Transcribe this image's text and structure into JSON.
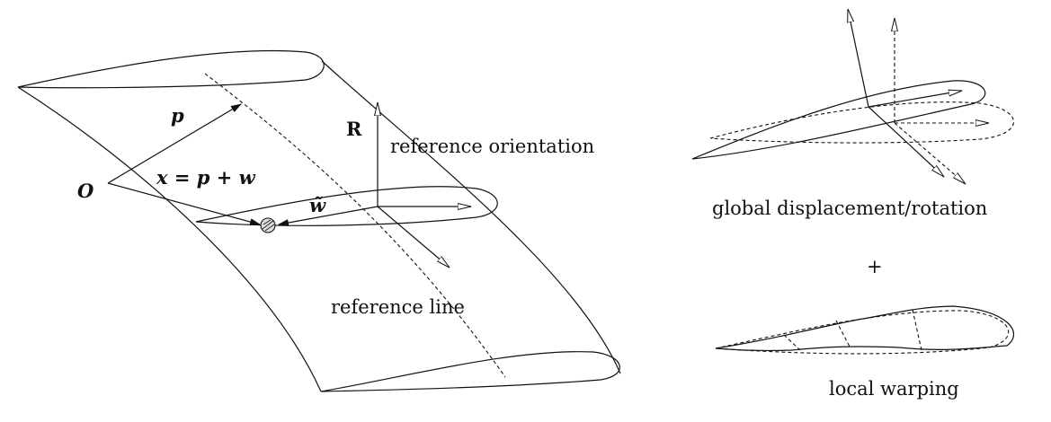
{
  "labels": {
    "origin": "O",
    "p_vector": "p",
    "position_eq": "x = p + w",
    "w_tilde": "w̃",
    "R": "R",
    "reference_orientation": "reference orientation",
    "reference_line": "reference line",
    "global": "global displacement/rotation",
    "plus": "+",
    "local": "local warping"
  }
}
